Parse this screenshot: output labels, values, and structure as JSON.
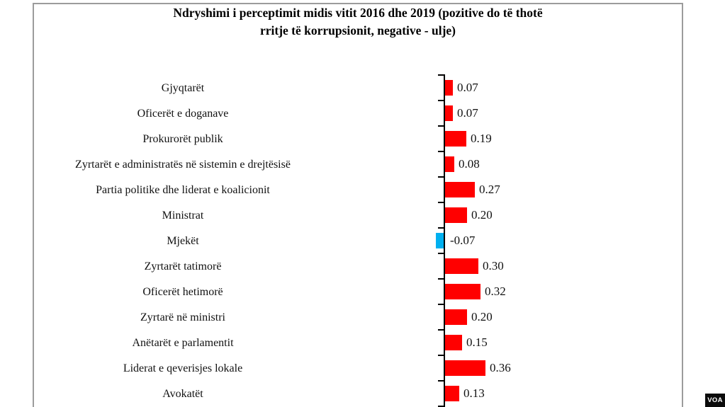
{
  "chart_data": {
    "type": "bar",
    "orientation": "horizontal",
    "title": "Ndryshimi i perceptimit midis vitit 2016 dhe 2019 (pozitive do të thotë rritje të korrupsionit, negative - ulje)",
    "title_lines": [
      "Ndryshimi i perceptimit midis vitit 2016 dhe 2019 (pozitive do të thotë",
      "rritje të korrupsionit, negative - ulje)"
    ],
    "categories": [
      "Gjyqtarët",
      "Oficerët e doganave",
      "Prokurorët publik",
      "Zyrtarët e administratës në sistemin e drejtësisë",
      "Partia politike dhe liderat e koalicionit",
      "Ministrat",
      "Mjekët",
      "Zyrtarët tatimorë",
      "Oficerët hetimorë",
      "Zyrtarë në ministri",
      "Anëtarët e parlamentit",
      "Liderat e qeverisjes lokale",
      "Avokatët"
    ],
    "values": [
      0.07,
      0.07,
      0.19,
      0.08,
      0.27,
      0.2,
      -0.07,
      0.3,
      0.32,
      0.2,
      0.15,
      0.36,
      0.13
    ],
    "value_labels": [
      "0.07",
      "0.07",
      "0.19",
      "0.08",
      "0.27",
      "0.20",
      "-0.07",
      "0.30",
      "0.32",
      "0.20",
      "0.15",
      "0.36",
      "0.13"
    ],
    "xlim": [
      -0.1,
      2.1
    ],
    "legend": "none",
    "grid": "off",
    "positive_color": "#ff0000",
    "negative_color": "#00b0f0",
    "axis_color": "#000000"
  },
  "watermark": {
    "label": "VOA"
  }
}
